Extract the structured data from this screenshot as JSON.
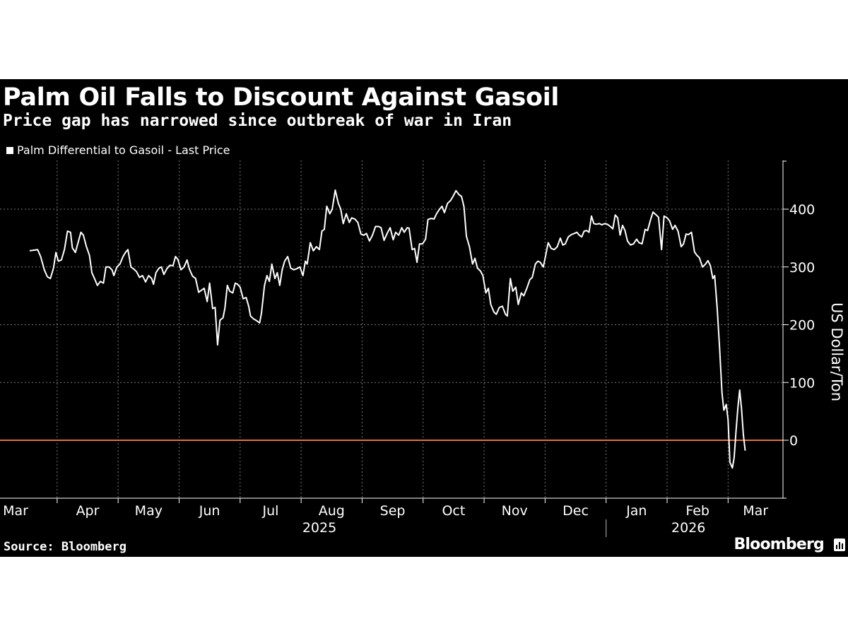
{
  "title": "Palm Oil Falls to Discount Against Gasoil",
  "subtitle": "Price gap has narrowed since outbreak of war in Iran",
  "legend_label": "Palm Differential to Gasoil - Last Price",
  "source": "Source: Bloomberg",
  "brand": "Bloomberg",
  "colors": {
    "background": "#000000",
    "line": "#ffffff",
    "zero_line": "#e0733a",
    "grid": "#7a7a7a"
  },
  "chart_data": {
    "type": "line",
    "title": "Palm Oil Falls to Discount Against Gasoil",
    "subtitle": "Price gap has narrowed since outbreak of war in Iran",
    "ylabel": "US Dollar/Ton",
    "ylim": [
      -100,
      480
    ],
    "yticks": [
      0,
      100,
      200,
      300,
      400
    ],
    "xlim": [
      0,
      12.35
    ],
    "month_labels": [
      "Mar",
      "Apr",
      "May",
      "Jun",
      "Jul",
      "Aug",
      "Sep",
      "Oct",
      "Nov",
      "Dec",
      "Jan",
      "Feb",
      "Mar"
    ],
    "month_starts": [
      0.0,
      0.45,
      1.45,
      2.45,
      3.45,
      4.45,
      5.45,
      6.45,
      7.45,
      8.45,
      9.45,
      10.45,
      11.45
    ],
    "year_labels": [
      "2025",
      "2026"
    ],
    "year_label_positions": [
      4.75,
      10.8
    ],
    "year_divider": 9.45,
    "reference_line": 0,
    "grid": true,
    "legend_position": "top-left",
    "series": [
      {
        "name": "Palm Differential to Gasoil - Last Price",
        "points": [
          [
            0.0,
            328
          ],
          [
            0.07,
            329
          ],
          [
            0.13,
            330
          ],
          [
            0.18,
            318
          ],
          [
            0.24,
            295
          ],
          [
            0.29,
            283
          ],
          [
            0.34,
            280
          ],
          [
            0.39,
            298
          ],
          [
            0.43,
            325
          ],
          [
            0.47,
            310
          ],
          [
            0.52,
            312
          ],
          [
            0.57,
            330
          ],
          [
            0.62,
            362
          ],
          [
            0.67,
            360
          ],
          [
            0.7,
            333
          ],
          [
            0.75,
            325
          ],
          [
            0.8,
            345
          ],
          [
            0.84,
            360
          ],
          [
            0.88,
            355
          ],
          [
            0.93,
            335
          ],
          [
            0.98,
            320
          ],
          [
            1.02,
            290
          ],
          [
            1.07,
            278
          ],
          [
            1.11,
            268
          ],
          [
            1.16,
            275
          ],
          [
            1.21,
            272
          ],
          [
            1.25,
            300
          ],
          [
            1.3,
            300
          ],
          [
            1.35,
            295
          ],
          [
            1.38,
            285
          ],
          [
            1.43,
            300
          ],
          [
            1.48,
            305
          ],
          [
            1.53,
            318
          ],
          [
            1.57,
            325
          ],
          [
            1.61,
            330
          ],
          [
            1.66,
            300
          ],
          [
            1.71,
            296
          ],
          [
            1.75,
            292
          ],
          [
            1.8,
            282
          ],
          [
            1.85,
            285
          ],
          [
            1.9,
            274
          ],
          [
            1.95,
            285
          ],
          [
            2.0,
            280
          ],
          [
            2.03,
            270
          ],
          [
            2.07,
            290
          ],
          [
            2.12,
            298
          ],
          [
            2.16,
            300
          ],
          [
            2.2,
            287
          ],
          [
            2.25,
            297
          ],
          [
            2.3,
            303
          ],
          [
            2.35,
            302
          ],
          [
            2.39,
            318
          ],
          [
            2.43,
            313
          ],
          [
            2.48,
            295
          ],
          [
            2.53,
            300
          ],
          [
            2.58,
            312
          ],
          [
            2.62,
            296
          ],
          [
            2.67,
            284
          ],
          [
            2.72,
            280
          ],
          [
            2.77,
            256
          ],
          [
            2.82,
            260
          ],
          [
            2.86,
            263
          ],
          [
            2.91,
            240
          ],
          [
            2.95,
            272
          ],
          [
            3.0,
            228
          ],
          [
            3.04,
            230
          ],
          [
            3.08,
            165
          ],
          [
            3.12,
            208
          ],
          [
            3.17,
            212
          ],
          [
            3.2,
            228
          ],
          [
            3.24,
            268
          ],
          [
            3.28,
            258
          ],
          [
            3.33,
            255
          ],
          [
            3.37,
            272
          ],
          [
            3.41,
            270
          ],
          [
            3.45,
            265
          ],
          [
            3.5,
            245
          ],
          [
            3.55,
            247
          ],
          [
            3.59,
            232
          ],
          [
            3.62,
            215
          ],
          [
            3.67,
            210
          ],
          [
            3.72,
            207
          ],
          [
            3.77,
            203
          ],
          [
            3.8,
            220
          ],
          [
            3.85,
            268
          ],
          [
            3.89,
            285
          ],
          [
            3.93,
            275
          ],
          [
            3.97,
            305
          ],
          [
            4.02,
            280
          ],
          [
            4.06,
            290
          ],
          [
            4.1,
            268
          ],
          [
            4.14,
            295
          ],
          [
            4.18,
            310
          ],
          [
            4.23,
            318
          ],
          [
            4.28,
            298
          ],
          [
            4.33,
            295
          ],
          [
            4.38,
            297
          ],
          [
            4.43,
            300
          ],
          [
            4.48,
            285
          ],
          [
            4.52,
            310
          ],
          [
            4.55,
            305
          ],
          [
            4.6,
            342
          ],
          [
            4.65,
            328
          ],
          [
            4.7,
            335
          ],
          [
            4.75,
            330
          ],
          [
            4.79,
            362
          ],
          [
            4.83,
            365
          ],
          [
            4.87,
            405
          ],
          [
            4.92,
            392
          ],
          [
            4.96,
            400
          ],
          [
            5.01,
            433
          ],
          [
            5.06,
            410
          ],
          [
            5.1,
            400
          ],
          [
            5.14,
            375
          ],
          [
            5.19,
            392
          ],
          [
            5.24,
            377
          ],
          [
            5.28,
            385
          ],
          [
            5.33,
            383
          ],
          [
            5.38,
            377
          ],
          [
            5.43,
            357
          ],
          [
            5.48,
            355
          ],
          [
            5.52,
            358
          ],
          [
            5.57,
            345
          ],
          [
            5.62,
            355
          ],
          [
            5.67,
            370
          ],
          [
            5.72,
            370
          ],
          [
            5.76,
            368
          ],
          [
            5.81,
            346
          ],
          [
            5.86,
            358
          ],
          [
            5.91,
            368
          ],
          [
            5.96,
            347
          ],
          [
            6.0,
            360
          ],
          [
            6.05,
            355
          ],
          [
            6.1,
            368
          ],
          [
            6.14,
            360
          ],
          [
            6.19,
            368
          ],
          [
            6.22,
            367
          ],
          [
            6.27,
            330
          ],
          [
            6.31,
            332
          ],
          [
            6.35,
            308
          ],
          [
            6.39,
            340
          ],
          [
            6.44,
            340
          ],
          [
            6.49,
            348
          ],
          [
            6.53,
            382
          ],
          [
            6.58,
            384
          ],
          [
            6.63,
            383
          ],
          [
            6.67,
            392
          ],
          [
            6.72,
            400
          ],
          [
            6.76,
            405
          ],
          [
            6.8,
            394
          ],
          [
            6.85,
            410
          ],
          [
            6.9,
            415
          ],
          [
            6.94,
            422
          ],
          [
            6.99,
            432
          ],
          [
            7.04,
            425
          ],
          [
            7.08,
            422
          ],
          [
            7.12,
            404
          ],
          [
            7.16,
            353
          ],
          [
            7.21,
            335
          ],
          [
            7.26,
            305
          ],
          [
            7.3,
            315
          ],
          [
            7.34,
            298
          ],
          [
            7.39,
            293
          ],
          [
            7.43,
            285
          ],
          [
            7.48,
            255
          ],
          [
            7.52,
            263
          ],
          [
            7.56,
            235
          ],
          [
            7.61,
            222
          ],
          [
            7.65,
            218
          ],
          [
            7.7,
            230
          ],
          [
            7.75,
            232
          ],
          [
            7.8,
            218
          ],
          [
            7.83,
            215
          ],
          [
            7.88,
            280
          ],
          [
            7.92,
            258
          ],
          [
            7.97,
            265
          ],
          [
            8.01,
            235
          ],
          [
            8.06,
            255
          ],
          [
            8.1,
            250
          ],
          [
            8.15,
            263
          ],
          [
            8.2,
            278
          ],
          [
            8.24,
            282
          ],
          [
            8.29,
            305
          ],
          [
            8.33,
            310
          ],
          [
            8.37,
            308
          ],
          [
            8.42,
            300
          ],
          [
            8.46,
            320
          ],
          [
            8.5,
            342
          ],
          [
            8.55,
            332
          ],
          [
            8.6,
            330
          ],
          [
            8.65,
            335
          ],
          [
            8.7,
            350
          ],
          [
            8.74,
            338
          ],
          [
            8.78,
            340
          ],
          [
            8.83,
            352
          ],
          [
            8.88,
            356
          ],
          [
            8.93,
            358
          ],
          [
            8.97,
            360
          ],
          [
            9.01,
            355
          ],
          [
            9.05,
            352
          ],
          [
            9.09,
            362
          ],
          [
            9.13,
            363
          ],
          [
            9.17,
            360
          ],
          [
            9.21,
            388
          ],
          [
            9.25,
            375
          ],
          [
            9.29,
            374
          ],
          [
            9.34,
            375
          ],
          [
            9.38,
            373
          ],
          [
            9.43,
            375
          ],
          [
            9.47,
            374
          ],
          [
            9.52,
            370
          ],
          [
            9.56,
            366
          ],
          [
            9.6,
            390
          ],
          [
            9.64,
            385
          ],
          [
            9.68,
            355
          ],
          [
            9.72,
            372
          ],
          [
            9.76,
            363
          ],
          [
            9.8,
            345
          ],
          [
            9.85,
            338
          ],
          [
            9.9,
            340
          ],
          [
            9.95,
            348
          ],
          [
            9.99,
            342
          ],
          [
            10.04,
            340
          ],
          [
            10.09,
            365
          ],
          [
            10.13,
            363
          ],
          [
            10.18,
            382
          ],
          [
            10.22,
            395
          ],
          [
            10.27,
            390
          ],
          [
            10.31,
            386
          ],
          [
            10.36,
            330
          ],
          [
            10.4,
            388
          ],
          [
            10.45,
            385
          ],
          [
            10.49,
            380
          ],
          [
            10.54,
            365
          ],
          [
            10.58,
            372
          ],
          [
            10.63,
            362
          ],
          [
            10.68,
            335
          ],
          [
            10.72,
            340
          ],
          [
            10.76,
            357
          ],
          [
            10.8,
            356
          ],
          [
            10.85,
            360
          ],
          [
            10.9,
            326
          ],
          [
            10.94,
            320
          ],
          [
            10.98,
            316
          ],
          [
            11.03,
            300
          ],
          [
            11.08,
            305
          ],
          [
            11.12,
            311
          ],
          [
            11.16,
            302
          ],
          [
            11.2,
            280
          ],
          [
            11.23,
            285
          ],
          [
            11.27,
            230
          ],
          [
            11.31,
            162
          ],
          [
            11.35,
            82
          ],
          [
            11.38,
            52
          ],
          [
            11.42,
            62
          ],
          [
            11.45,
            35
          ],
          [
            11.48,
            -38
          ],
          [
            11.52,
            -48
          ],
          [
            11.55,
            -30
          ],
          [
            11.58,
            15
          ],
          [
            11.61,
            55
          ],
          [
            11.64,
            87
          ],
          [
            11.67,
            55
          ],
          [
            11.7,
            10
          ],
          [
            11.73,
            -18
          ]
        ]
      }
    ]
  }
}
